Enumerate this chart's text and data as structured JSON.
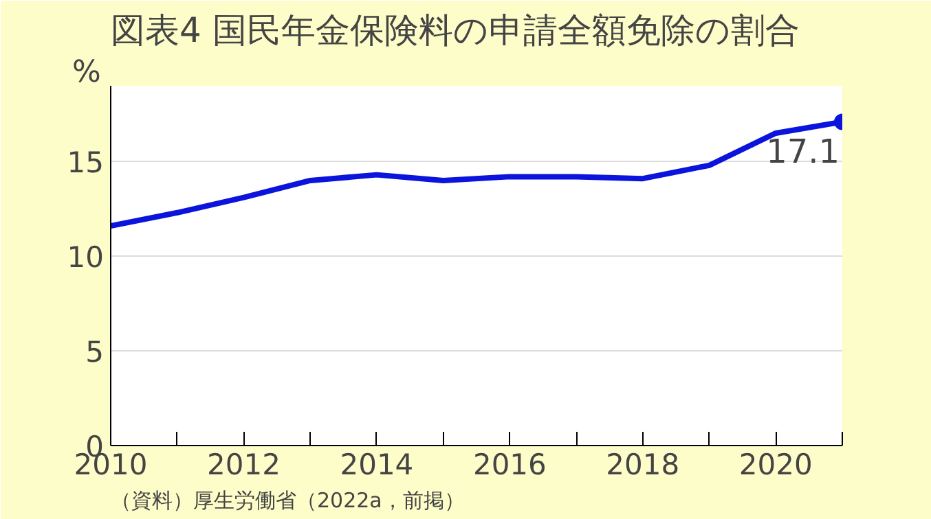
{
  "chart_data": {
    "type": "line",
    "title": "図表4 国民年金保険料の申請全額免除の割合",
    "ylabel": "%",
    "annotations": [
      "（資料）厚生労働省（2022a，前掲）"
    ],
    "x": [
      2010,
      2011,
      2012,
      2013,
      2014,
      2015,
      2016,
      2017,
      2018,
      2019,
      2020,
      2021
    ],
    "series": [
      {
        "color": "#0a14dc",
        "values": [
          11.6,
          12.3,
          13.1,
          14.0,
          14.3,
          14.0,
          14.2,
          14.2,
          14.1,
          14.8,
          16.5,
          17.1
        ]
      },
      {
        "type": "scatter",
        "color": "#0a14dc",
        "x": [
          2021
        ],
        "values": [
          17.1
        ],
        "value_labels": [
          "17.1"
        ]
      }
    ],
    "xlim": [
      2010,
      2021
    ],
    "xticks": [
      2010,
      {
        "value": 2011,
        "label": null
      },
      2012,
      {
        "value": 2013,
        "label": null
      },
      2014,
      {
        "value": 2015,
        "label": null
      },
      2016,
      {
        "value": 2017,
        "label": null
      },
      2018,
      {
        "value": 2019,
        "label": null
      },
      2020,
      {
        "value": 2021,
        "label": null
      }
    ],
    "ylim": [
      0,
      19
    ],
    "yticks": [
      0,
      5,
      10,
      15
    ],
    "grid": "y",
    "line_style": "solid"
  }
}
